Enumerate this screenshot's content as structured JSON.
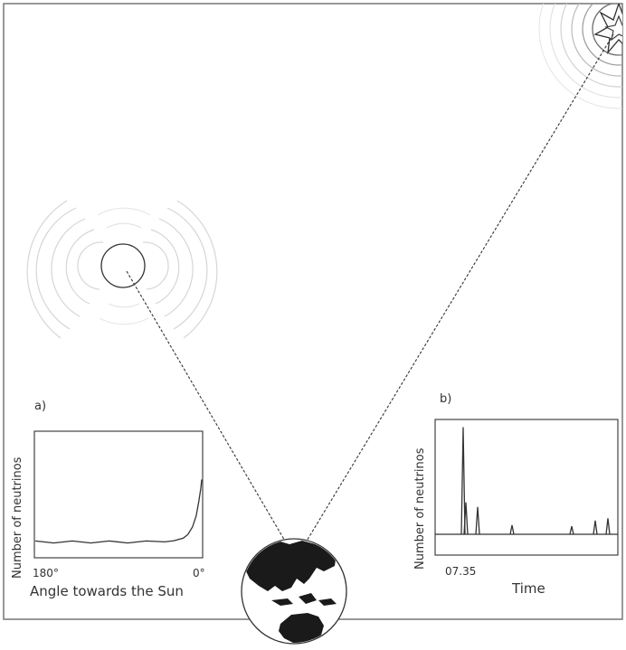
{
  "panel_a": {
    "tag": "a)",
    "ylabel": "Number of neutrinos",
    "xlabel": "Angle towards the Sun",
    "tick_left": "180°",
    "tick_right": "0°"
  },
  "panel_b": {
    "tag": "b)",
    "ylabel": "Number of neutrinos",
    "xlabel": "Time",
    "tick_left": "07.35"
  },
  "chart_data": [
    {
      "type": "line",
      "xlabel": "Angle towards the Sun",
      "ylabel": "Number of neutrinos",
      "xticks": [
        "180°",
        "0°"
      ],
      "xlim": [
        180,
        0
      ],
      "ylim": [
        0,
        1
      ],
      "x": [
        180,
        160,
        140,
        120,
        100,
        80,
        60,
        40,
        30,
        20,
        15,
        10,
        6,
        3,
        1,
        0
      ],
      "values": [
        0.12,
        0.12,
        0.12,
        0.12,
        0.12,
        0.12,
        0.12,
        0.12,
        0.13,
        0.15,
        0.18,
        0.24,
        0.33,
        0.45,
        0.55,
        0.62
      ]
    },
    {
      "type": "bar",
      "xlabel": "Time",
      "ylabel": "Number of neutrinos",
      "xticks": [
        "07.35"
      ],
      "xlim": [
        0,
        1
      ],
      "ylim": [
        0,
        1
      ],
      "x": [
        0.15,
        0.165,
        0.23,
        0.42,
        0.75,
        0.88,
        0.95
      ],
      "values": [
        0.94,
        0.28,
        0.24,
        0.08,
        0.07,
        0.12,
        0.14
      ]
    }
  ]
}
